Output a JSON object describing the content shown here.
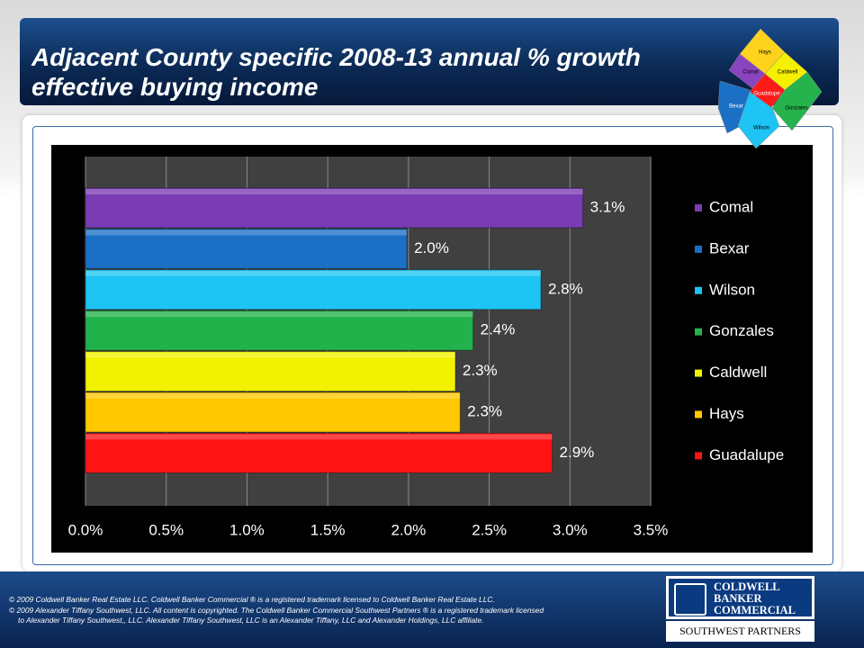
{
  "title": "Adjacent County specific 2008-13 annual % growth effective buying income",
  "chart_data": {
    "type": "bar",
    "orientation": "horizontal",
    "categories": [
      "Comal",
      "Bexar",
      "Wilson",
      "Gonzales",
      "Caldwell",
      "Hays",
      "Guadalupe"
    ],
    "values": [
      3.08,
      1.99,
      2.82,
      2.4,
      2.29,
      2.32,
      2.89
    ],
    "value_labels": [
      "3.1%",
      "2.0%",
      "2.8%",
      "2.4%",
      "2.3%",
      "2.3%",
      "2.9%"
    ],
    "colors": [
      "#7a3cb4",
      "#1b70c6",
      "#1ec4f4",
      "#22b24c",
      "#f2f200",
      "#ffc800",
      "#ff1414"
    ],
    "xlim": [
      0,
      3.5
    ],
    "xticks": [
      {
        "value": 0,
        "label": "0.0%"
      },
      {
        "value": 0.5,
        "label": "0.5%"
      },
      {
        "value": 1,
        "label": "1.0%"
      },
      {
        "value": 1.5,
        "label": "1.5%"
      },
      {
        "value": 2,
        "label": "2.0%"
      },
      {
        "value": 2.5,
        "label": "2.5%"
      },
      {
        "value": 3,
        "label": "3.0%"
      },
      {
        "value": 3.5,
        "label": "3.5%"
      }
    ],
    "grid": true,
    "legend": "right"
  },
  "map_labels": [
    "Hays",
    "Comal",
    "Caldwell",
    "Guadalupe",
    "Bexar",
    "Gonzales",
    "Wilson"
  ],
  "footer": [
    "© 2009 Coldwell Banker Real Estate LLC. Coldwell Banker Commercial ® is a registered trademark licensed to Coldwell Banker Real Estate LLC.",
    "© 2009 Alexander Tiffany Southwest, LLC. All content is copyrighted. The Coldwell Banker Commercial Southwest Partners ® is a registered trademark licensed",
    "to Alexander Tiffany Southwest,, LLC.  Alexander Tiffany Southwest, LLC is an Alexander Tiffany, LLC and Alexander Holdings, LLC affiliate."
  ],
  "logo": [
    "COLDWELL",
    "BANKER",
    "COMMERCIAL"
  ],
  "logo_subtitle": "SOUTHWEST PARTNERS"
}
